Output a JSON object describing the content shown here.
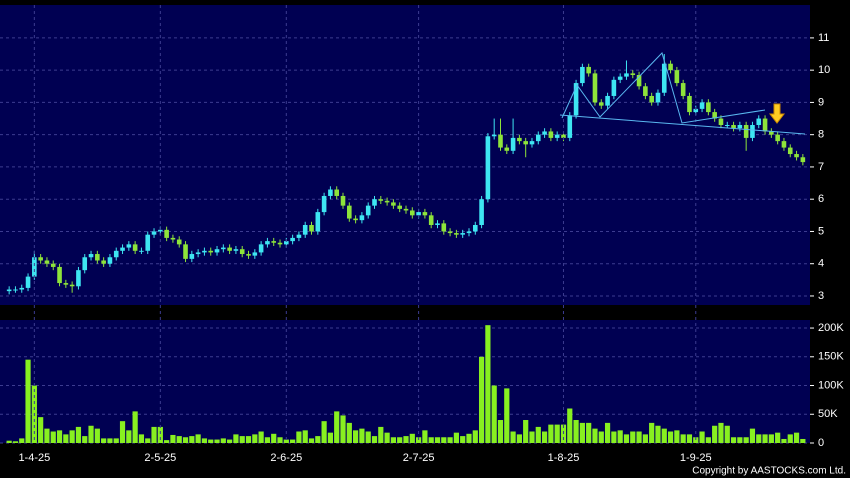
{
  "chart_data": [
    {
      "type": "candlestick",
      "open": [
        3.15,
        3.2,
        3.2,
        3.25,
        3.6,
        4.2,
        4.1,
        4.0,
        3.9,
        3.4,
        3.35,
        3.3,
        3.8,
        4.2,
        4.3,
        4.1,
        4.0,
        4.2,
        4.4,
        4.5,
        4.6,
        4.4,
        4.4,
        4.9,
        5.0,
        5.05,
        4.8,
        4.75,
        4.6,
        4.15,
        4.3,
        4.35,
        4.4,
        4.35,
        4.45,
        4.5,
        4.4,
        4.45,
        4.3,
        4.25,
        4.35,
        4.6,
        4.7,
        4.65,
        4.6,
        4.7,
        4.8,
        4.9,
        5.2,
        5.0,
        5.6,
        6.1,
        6.3,
        6.1,
        5.8,
        5.4,
        5.35,
        5.5,
        5.8,
        6.0,
        5.95,
        5.9,
        5.8,
        5.7,
        5.65,
        5.5,
        5.6,
        5.5,
        5.2,
        5.25,
        5.0,
        4.95,
        4.9,
        4.95,
        5.0,
        5.2,
        6.0,
        7.95,
        8.0,
        7.6,
        7.5,
        7.9,
        7.8,
        7.7,
        7.8,
        8.0,
        8.1,
        7.9,
        8.0,
        7.9,
        8.6,
        9.6,
        10.1,
        9.9,
        9.0,
        8.9,
        9.2,
        9.7,
        9.8,
        9.9,
        9.85,
        9.5,
        9.2,
        9.0,
        9.3,
        10.2,
        10.0,
        9.6,
        9.2,
        8.7,
        8.8,
        9.0,
        8.7,
        8.5,
        8.3,
        8.3,
        8.2,
        8.3,
        7.9,
        8.3,
        8.5,
        8.1,
        8.0,
        7.8,
        7.6,
        7.4,
        7.3
      ],
      "high": [
        3.3,
        3.3,
        3.35,
        3.7,
        4.4,
        4.3,
        4.2,
        4.1,
        4.0,
        3.5,
        3.45,
        3.9,
        4.3,
        4.4,
        4.4,
        4.2,
        4.3,
        4.5,
        4.6,
        4.7,
        4.7,
        4.5,
        5.0,
        5.1,
        5.15,
        5.15,
        4.9,
        4.85,
        4.7,
        4.4,
        4.45,
        4.5,
        4.5,
        4.55,
        4.6,
        4.6,
        4.55,
        4.55,
        4.4,
        4.45,
        4.7,
        4.8,
        4.8,
        4.75,
        4.8,
        4.9,
        5.0,
        5.3,
        5.3,
        5.7,
        6.2,
        6.4,
        6.4,
        6.2,
        5.9,
        5.5,
        5.6,
        5.9,
        6.1,
        6.1,
        6.05,
        6.0,
        5.9,
        5.8,
        5.75,
        5.7,
        5.7,
        5.6,
        5.35,
        5.35,
        5.1,
        5.05,
        5.05,
        5.1,
        5.3,
        6.1,
        8.05,
        8.5,
        8.5,
        7.7,
        8.5,
        8.0,
        7.9,
        7.9,
        8.1,
        8.2,
        8.2,
        8.1,
        8.1,
        8.7,
        9.7,
        10.2,
        10.2,
        10.0,
        9.1,
        9.3,
        9.8,
        9.9,
        10.3,
        10.0,
        9.95,
        9.6,
        9.3,
        9.4,
        10.5,
        10.3,
        10.1,
        9.7,
        9.3,
        8.9,
        9.1,
        9.1,
        8.8,
        8.6,
        8.4,
        8.4,
        8.4,
        8.4,
        8.4,
        8.6,
        8.6,
        8.2,
        8.1,
        7.9,
        7.7,
        7.5,
        7.4
      ],
      "low": [
        3.05,
        3.1,
        3.1,
        3.15,
        3.5,
        4.0,
        3.9,
        3.8,
        3.3,
        3.25,
        3.1,
        3.2,
        3.7,
        4.1,
        4.0,
        3.9,
        3.9,
        4.1,
        4.3,
        4.4,
        4.3,
        4.3,
        4.3,
        4.8,
        4.9,
        4.7,
        4.65,
        4.5,
        4.05,
        4.05,
        4.2,
        4.25,
        4.25,
        4.25,
        4.35,
        4.3,
        4.3,
        4.2,
        4.15,
        4.15,
        4.25,
        4.5,
        4.55,
        4.5,
        4.5,
        4.6,
        4.7,
        4.8,
        4.9,
        4.9,
        5.5,
        6.0,
        6.0,
        5.7,
        5.3,
        5.25,
        5.25,
        5.4,
        5.7,
        5.85,
        5.8,
        5.7,
        5.6,
        5.55,
        5.4,
        5.4,
        5.4,
        5.1,
        5.1,
        4.9,
        4.85,
        4.8,
        4.8,
        4.85,
        4.9,
        5.1,
        5.9,
        7.85,
        7.5,
        7.4,
        7.4,
        7.7,
        7.3,
        7.6,
        7.7,
        7.9,
        7.8,
        7.8,
        7.8,
        7.8,
        8.5,
        9.5,
        9.8,
        8.9,
        8.8,
        8.8,
        9.1,
        9.6,
        9.7,
        9.75,
        9.4,
        9.1,
        8.9,
        8.9,
        9.2,
        9.9,
        9.5,
        9.1,
        8.6,
        8.6,
        8.7,
        8.6,
        8.4,
        8.2,
        8.2,
        8.1,
        8.1,
        7.5,
        7.8,
        8.2,
        8.0,
        7.9,
        7.7,
        7.5,
        7.3,
        7.2,
        7.05
      ],
      "close": [
        3.2,
        3.2,
        3.25,
        3.6,
        4.2,
        4.1,
        4.0,
        3.9,
        3.4,
        3.35,
        3.3,
        3.8,
        4.2,
        4.3,
        4.1,
        4.0,
        4.2,
        4.4,
        4.5,
        4.6,
        4.4,
        4.4,
        4.9,
        5.0,
        5.05,
        4.8,
        4.75,
        4.6,
        4.15,
        4.3,
        4.35,
        4.4,
        4.35,
        4.45,
        4.5,
        4.4,
        4.45,
        4.3,
        4.25,
        4.35,
        4.6,
        4.7,
        4.65,
        4.6,
        4.7,
        4.8,
        4.9,
        5.2,
        5.0,
        5.6,
        6.1,
        6.3,
        6.1,
        5.8,
        5.4,
        5.35,
        5.5,
        5.8,
        6.0,
        5.95,
        5.9,
        5.8,
        5.7,
        5.65,
        5.5,
        5.6,
        5.5,
        5.2,
        5.25,
        5.0,
        4.95,
        4.9,
        4.95,
        5.0,
        5.2,
        6.0,
        7.95,
        8.0,
        7.6,
        7.5,
        7.9,
        7.8,
        7.7,
        7.8,
        8.0,
        8.1,
        7.9,
        8.0,
        7.9,
        8.6,
        9.6,
        10.1,
        9.9,
        9.0,
        8.9,
        9.2,
        9.7,
        9.8,
        9.9,
        9.85,
        9.5,
        9.2,
        9.0,
        9.3,
        10.2,
        10.0,
        9.6,
        9.2,
        8.7,
        8.8,
        9.0,
        8.7,
        8.5,
        8.3,
        8.3,
        8.2,
        8.3,
        7.9,
        8.3,
        8.5,
        8.1,
        8.0,
        7.8,
        7.6,
        7.4,
        7.3,
        7.15
      ],
      "up_color": "#3ee6f2",
      "down_color": "#8ee43a",
      "ylim": [
        2.72,
        12.02
      ],
      "yticks": [
        3,
        4,
        5,
        6,
        7,
        8,
        9,
        10,
        11
      ],
      "grid": true
    },
    {
      "type": "bar",
      "categories": [
        null,
        null,
        null,
        null,
        "1-4-25",
        null,
        null,
        null,
        null,
        null,
        null,
        null,
        null,
        null,
        null,
        null,
        null,
        null,
        null,
        null,
        null,
        null,
        null,
        null,
        "2-5-25",
        null,
        null,
        null,
        null,
        null,
        null,
        null,
        null,
        null,
        null,
        null,
        null,
        null,
        null,
        null,
        null,
        null,
        null,
        null,
        "2-6-25",
        null,
        null,
        null,
        null,
        null,
        null,
        null,
        null,
        null,
        null,
        null,
        null,
        null,
        null,
        null,
        null,
        null,
        null,
        null,
        null,
        "2-7-25",
        null,
        null,
        null,
        null,
        null,
        null,
        null,
        null,
        null,
        null,
        null,
        null,
        null,
        null,
        null,
        null,
        null,
        null,
        null,
        null,
        null,
        null,
        "1-8-25",
        null,
        null,
        null,
        null,
        null,
        null,
        null,
        null,
        null,
        null,
        null,
        null,
        null,
        null,
        null,
        null,
        null,
        null,
        null,
        null,
        "1-9-25",
        null,
        null,
        null,
        null,
        null,
        null,
        null,
        null,
        null,
        null,
        null,
        null,
        null,
        null,
        null,
        null,
        null
      ],
      "values": [
        4000,
        3000,
        8000,
        145000,
        100000,
        45000,
        25000,
        20000,
        22000,
        15000,
        22000,
        28000,
        12000,
        30000,
        25000,
        8000,
        8000,
        8000,
        38000,
        22000,
        55000,
        15000,
        8000,
        28000,
        28000,
        5000,
        14000,
        12000,
        10000,
        12000,
        15000,
        8000,
        6000,
        6000,
        8000,
        6000,
        15000,
        12000,
        12000,
        15000,
        20000,
        10000,
        16000,
        10000,
        6000,
        6000,
        20000,
        22000,
        8000,
        12000,
        38000,
        18000,
        55000,
        48000,
        35000,
        22000,
        25000,
        20000,
        12000,
        28000,
        18000,
        10000,
        10000,
        12000,
        16000,
        10000,
        22000,
        10000,
        10000,
        10000,
        10000,
        18000,
        12000,
        16000,
        22000,
        150000,
        205000,
        100000,
        40000,
        95000,
        20000,
        15000,
        40000,
        20000,
        28000,
        20000,
        32000,
        32000,
        32000,
        60000,
        40000,
        35000,
        35000,
        25000,
        20000,
        35000,
        20000,
        22000,
        15000,
        20000,
        20000,
        15000,
        35000,
        30000,
        25000,
        20000,
        22000,
        15000,
        15000,
        10000,
        20000,
        10000,
        30000,
        35000,
        30000,
        10000,
        10000,
        10000,
        25000,
        15000,
        15000,
        15000,
        18000,
        7000,
        15000,
        18000,
        7000
      ],
      "color": "#88f020",
      "ylim": [
        0,
        214000
      ],
      "yticks": [
        0,
        {
          "value": 50000,
          "label": "50K"
        },
        {
          "value": 100000,
          "label": "100K"
        },
        {
          "value": 150000,
          "label": "150K"
        },
        {
          "value": 200000,
          "label": "200K"
        }
      ],
      "grid": true
    }
  ],
  "copyright": "Copyright by AASTOCKS.com Ltd."
}
